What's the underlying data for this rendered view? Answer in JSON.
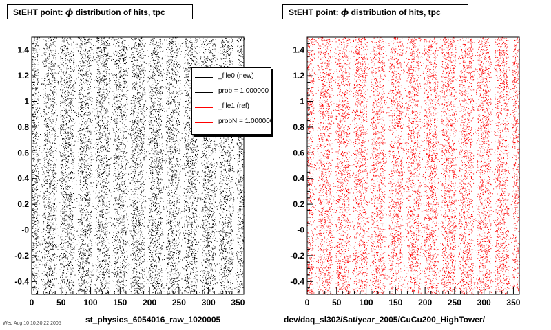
{
  "left_panel": {
    "title_prefix": "StEHT point:",
    "title_symbol": "ϕ",
    "title_suffix": "distribution of hits, tpc",
    "footer": "st_physics_6054016_raw_1020005"
  },
  "right_panel": {
    "title_prefix": "StEHT point:",
    "title_symbol": "ϕ",
    "title_suffix": "distribution of hits, tpc",
    "footer": "dev/daq_sl302/Sat/year_2005/CuCu200_HighTower/"
  },
  "legend": {
    "entries": [
      {
        "label": "_file0 (new)",
        "color": "#000000"
      },
      {
        "label": "prob = 1.000000",
        "color": "#000000"
      },
      {
        "label": "_file1 (ref)",
        "color": "#ff0000"
      },
      {
        "label": "probN = 1.000000",
        "color": "#ff0000"
      }
    ]
  },
  "corner_text": "Wed Aug 10 10:30:22 2005",
  "chart_data": [
    {
      "type": "scatter",
      "name": "left",
      "color": "#000000",
      "xlim": [
        0,
        360
      ],
      "ylim": [
        -0.5,
        1.5
      ],
      "xticks": [
        0,
        50,
        100,
        150,
        200,
        250,
        300,
        350
      ],
      "xtick_labels": [
        "0",
        "50",
        "100",
        "150",
        "200",
        "250",
        "300",
        "350"
      ],
      "yticks": [
        -0.4,
        -0.2,
        0,
        0.2,
        0.4,
        0.6,
        0.8,
        1,
        1.2,
        1.4
      ],
      "ytick_labels": [
        "-0.4",
        "-0.2",
        "-0",
        "0.2",
        "0.4",
        "0.6",
        "0.8",
        "1",
        "1.2",
        "1.4"
      ],
      "gap_centers_deg": [
        15,
        45,
        75,
        105,
        135,
        165,
        195,
        225,
        255,
        285,
        315,
        345
      ],
      "point_count": 14000,
      "seed": 7
    },
    {
      "type": "scatter",
      "name": "right",
      "color": "#ff0000",
      "xlim": [
        0,
        360
      ],
      "ylim": [
        -0.5,
        1.5
      ],
      "xticks": [
        0,
        50,
        100,
        150,
        200,
        250,
        300,
        350
      ],
      "xtick_labels": [
        "0",
        "50",
        "100",
        "150",
        "200",
        "250",
        "300",
        "350"
      ],
      "yticks": [
        -0.4,
        -0.2,
        0,
        0.2,
        0.4,
        0.6,
        0.8,
        1,
        1.2,
        1.4
      ],
      "ytick_labels": [
        "-0.4",
        "-0.2",
        "-0",
        "0.2",
        "0.4",
        "0.6",
        "0.8",
        "1",
        "1.2",
        "1.4"
      ],
      "gap_centers_deg": [
        15,
        45,
        75,
        105,
        135,
        165,
        195,
        225,
        255,
        285,
        315,
        345
      ],
      "point_count": 14000,
      "seed": 11
    }
  ]
}
